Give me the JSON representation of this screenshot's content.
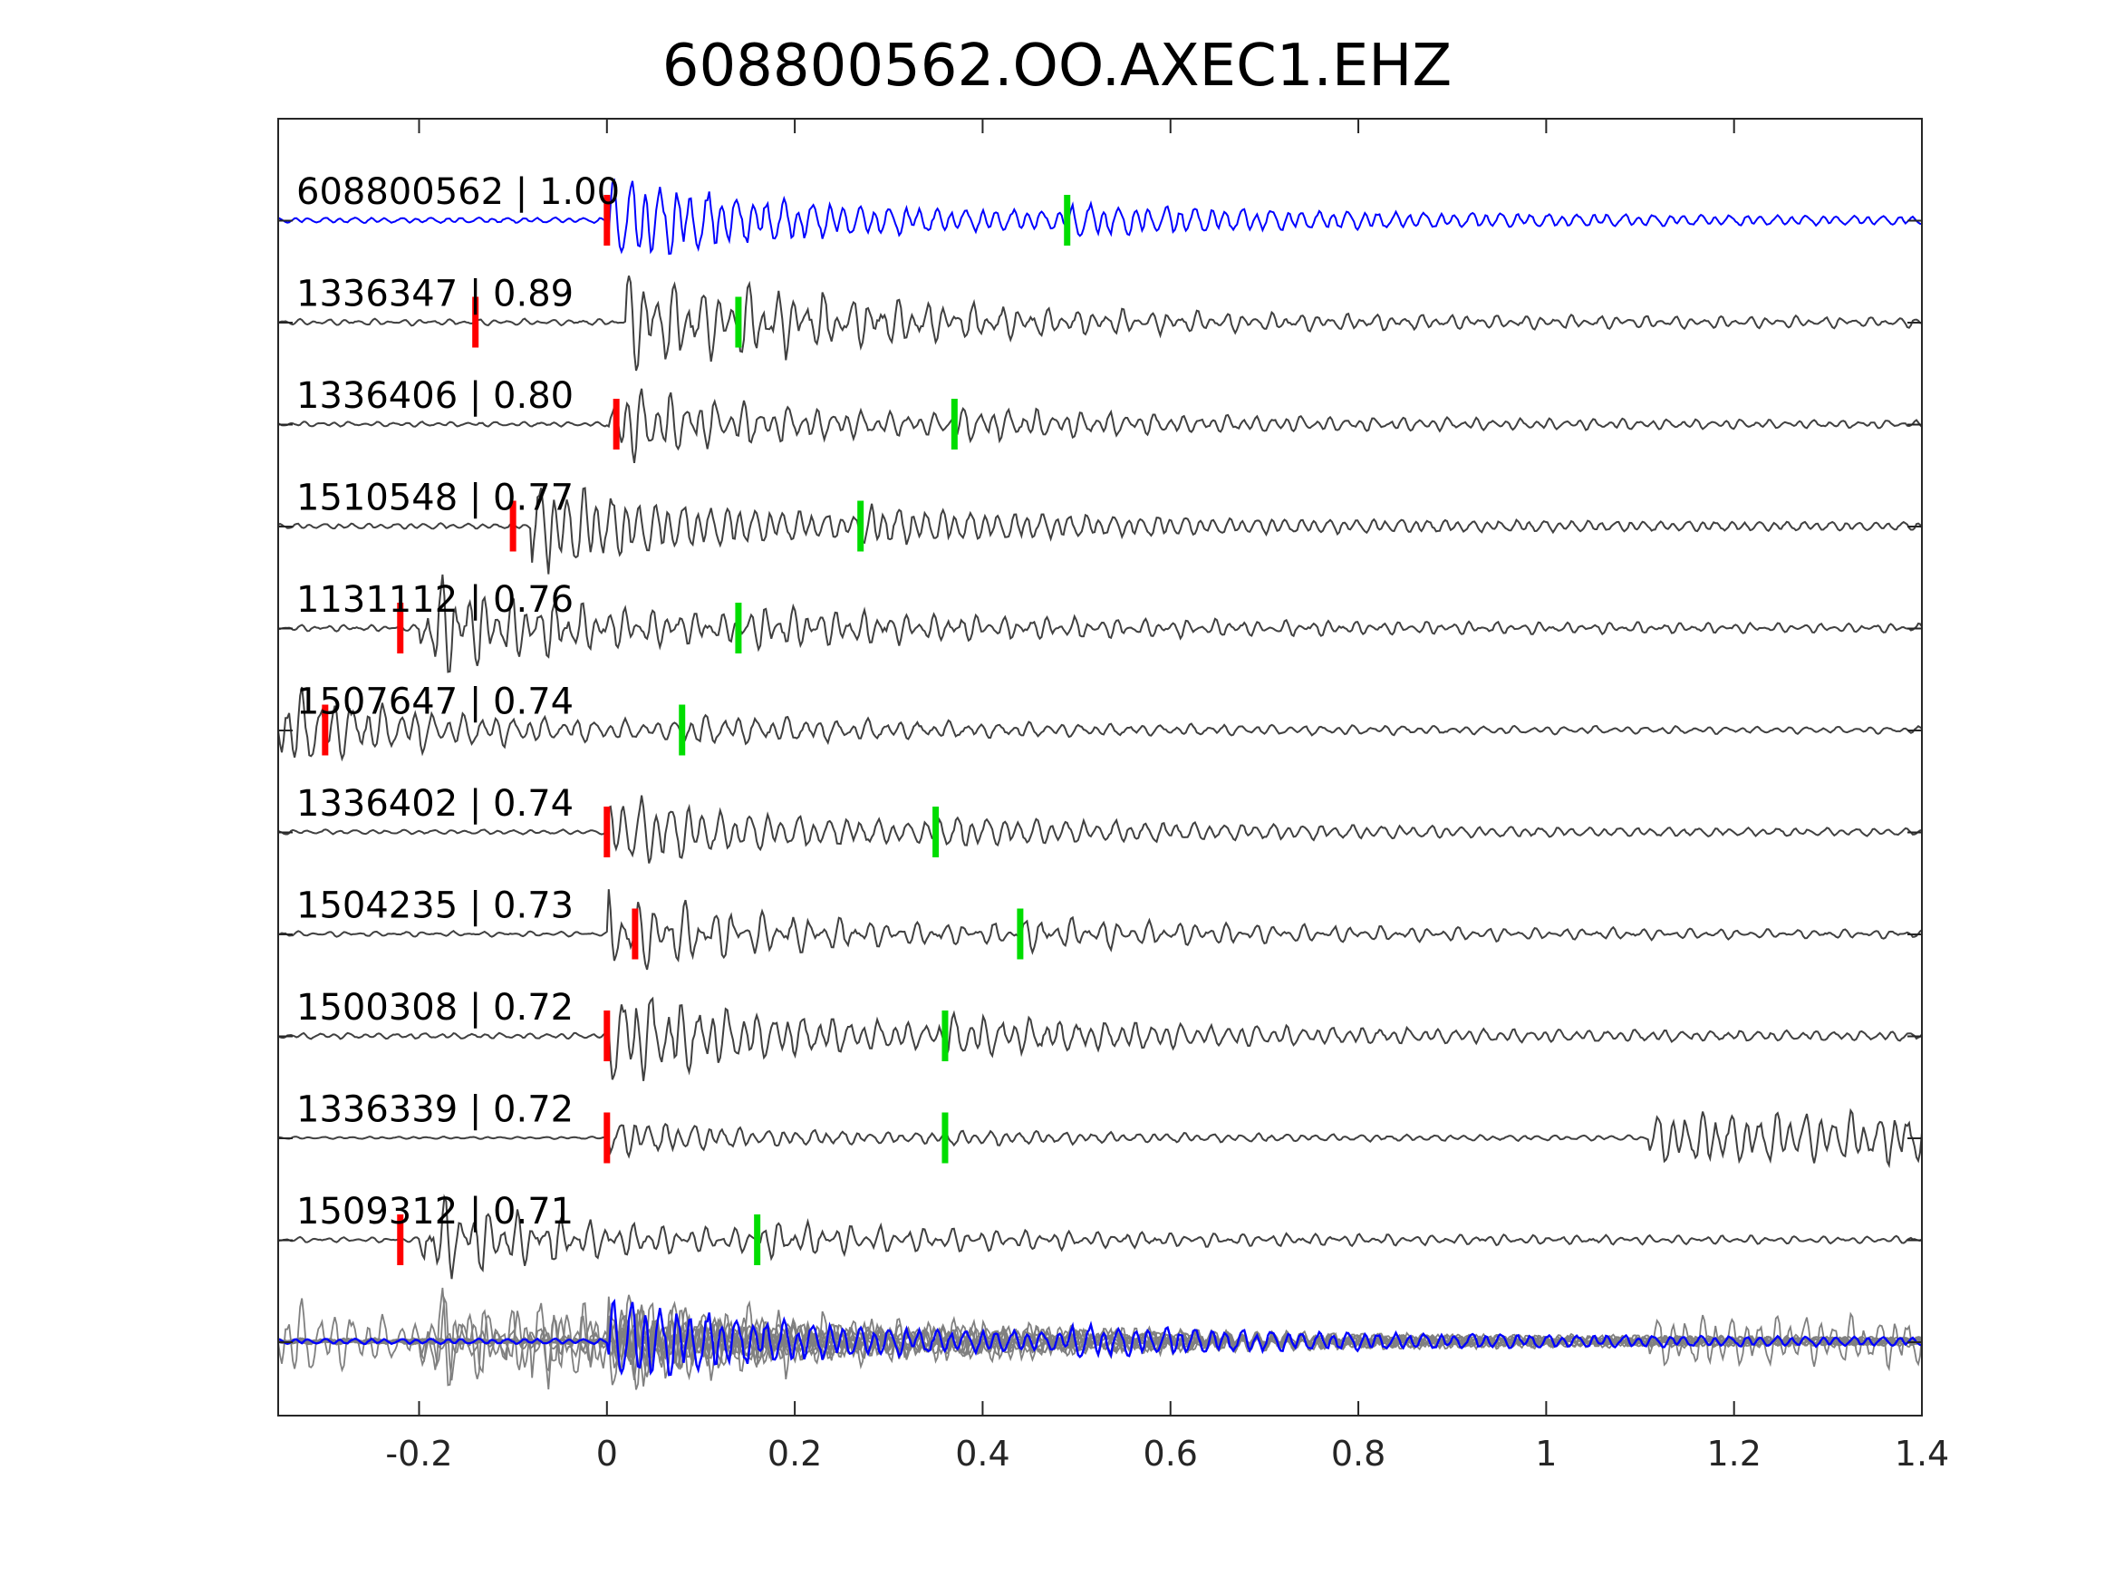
{
  "chart_data": {
    "type": "line",
    "title": "608800562.OO.AXEC1.EHZ",
    "xlabel": "",
    "ylabel": "",
    "xlim": [
      -0.35,
      1.4
    ],
    "xticks": [
      -0.2,
      0,
      0.2,
      0.4,
      0.6,
      0.8,
      1,
      1.2,
      1.4
    ],
    "xtick_labels": [
      "-0.2",
      "0",
      "0.2",
      "0.4",
      "0.6",
      "0.8",
      "1",
      "1.2",
      "1.4"
    ],
    "grid": false,
    "legend": "none",
    "colors": {
      "reference_trace": "#0000ff",
      "match_trace": "#404040",
      "stack_trace": "#808080",
      "p_pick": "#ff0000",
      "s_pick": "#00dd00",
      "axes": "#262626"
    },
    "traces": [
      {
        "label": "608800562 | 1.00",
        "event_id": "608800562",
        "correlation": 1.0,
        "p_pick": 0.0,
        "s_pick": 0.49,
        "onset": 0.0,
        "amplitude": 1.0,
        "reference": true
      },
      {
        "label": "1336347 | 0.89",
        "event_id": "1336347",
        "correlation": 0.89,
        "p_pick": -0.14,
        "s_pick": 0.14,
        "onset": 0.02,
        "amplitude": 1.0
      },
      {
        "label": "1336406 | 0.80",
        "event_id": "1336406",
        "correlation": 0.8,
        "p_pick": 0.01,
        "s_pick": 0.37,
        "onset": 0.0,
        "amplitude": 0.8
      },
      {
        "label": "1510548 | 0.77",
        "event_id": "1510548",
        "correlation": 0.77,
        "p_pick": -0.1,
        "s_pick": 0.27,
        "onset": -0.08,
        "amplitude": 1.0
      },
      {
        "label": "1131112 | 0.76",
        "event_id": "1131112",
        "correlation": 0.76,
        "p_pick": -0.22,
        "s_pick": 0.14,
        "onset": -0.2,
        "amplitude": 1.0
      },
      {
        "label": "1507647 | 0.74",
        "event_id": "1507647",
        "correlation": 0.74,
        "p_pick": -0.3,
        "s_pick": 0.08,
        "onset": -0.35,
        "amplitude": 0.8
      },
      {
        "label": "1336402 | 0.74",
        "event_id": "1336402",
        "correlation": 0.74,
        "p_pick": 0.0,
        "s_pick": 0.35,
        "onset": 0.0,
        "amplitude": 0.8
      },
      {
        "label": "1504235 | 0.73",
        "event_id": "1504235",
        "correlation": 0.73,
        "p_pick": 0.03,
        "s_pick": 0.44,
        "onset": 0.0,
        "amplitude": 0.8
      },
      {
        "label": "1500308 | 0.72",
        "event_id": "1500308",
        "correlation": 0.72,
        "p_pick": 0.0,
        "s_pick": 0.36,
        "onset": 0.0,
        "amplitude": 1.0
      },
      {
        "label": "1336339 | 0.72",
        "event_id": "1336339",
        "correlation": 0.72,
        "p_pick": 0.0,
        "s_pick": 0.36,
        "onset": 0.0,
        "amplitude": 0.4,
        "late_burst": 1.11
      },
      {
        "label": "1509312 | 0.71",
        "event_id": "1509312",
        "correlation": 0.71,
        "p_pick": -0.22,
        "s_pick": 0.16,
        "onset": -0.2,
        "amplitude": 0.8
      }
    ],
    "stack": {
      "traces": "all",
      "reference_overlay": "608800562"
    }
  }
}
